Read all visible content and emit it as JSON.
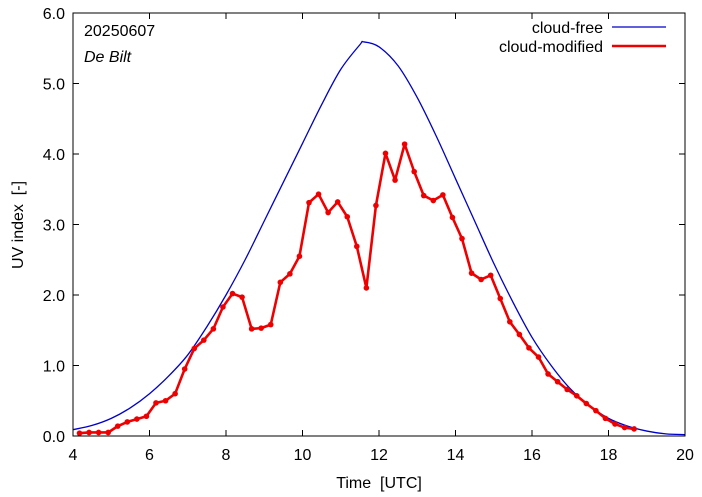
{
  "chart_data": {
    "type": "line",
    "date_label": "20250607",
    "location_label": "De Bilt",
    "xlabel": "Time  [UTC]",
    "ylabel": "UV index  [-]",
    "xlim": [
      4,
      20
    ],
    "ylim": [
      0,
      6
    ],
    "xticks": [
      4,
      6,
      8,
      10,
      12,
      14,
      16,
      18,
      20
    ],
    "xtick_labels": [
      "4",
      "6",
      "8",
      "10",
      "12",
      "14",
      "16",
      "18",
      "20"
    ],
    "yticks": [
      0,
      1,
      2,
      3,
      4,
      5,
      6
    ],
    "ytick_labels": [
      "0.0",
      "1.0",
      "2.0",
      "3.0",
      "4.0",
      "5.0",
      "6.0"
    ],
    "legend_position": "top-right",
    "grid": false,
    "series": [
      {
        "name": "cloud-free",
        "color": "#0000cc",
        "x": [
          4.0,
          4.5,
          5.0,
          5.5,
          6.0,
          6.5,
          7.0,
          7.5,
          8.0,
          8.5,
          9.0,
          9.5,
          10.0,
          10.5,
          11.0,
          11.5,
          11.6,
          12.0,
          12.5,
          13.0,
          13.5,
          14.0,
          14.5,
          15.0,
          15.5,
          16.0,
          16.5,
          17.0,
          17.5,
          18.0,
          18.5,
          19.0,
          19.5,
          20.0
        ],
        "y": [
          0.09,
          0.15,
          0.25,
          0.4,
          0.6,
          0.85,
          1.15,
          1.55,
          2.0,
          2.5,
          3.05,
          3.6,
          4.15,
          4.7,
          5.2,
          5.55,
          5.59,
          5.52,
          5.25,
          4.8,
          4.25,
          3.65,
          3.05,
          2.45,
          1.9,
          1.4,
          1.0,
          0.67,
          0.43,
          0.25,
          0.14,
          0.07,
          0.03,
          0.02
        ]
      },
      {
        "name": "cloud-modified",
        "color": "#ee0000",
        "x": [
          4.17,
          4.42,
          4.67,
          4.92,
          5.17,
          5.42,
          5.67,
          5.92,
          6.17,
          6.42,
          6.67,
          6.92,
          7.17,
          7.42,
          7.67,
          7.92,
          8.17,
          8.42,
          8.67,
          8.92,
          9.17,
          9.42,
          9.67,
          9.92,
          10.17,
          10.42,
          10.67,
          10.92,
          11.17,
          11.42,
          11.67,
          11.92,
          12.17,
          12.42,
          12.67,
          12.92,
          13.17,
          13.42,
          13.67,
          13.92,
          14.17,
          14.42,
          14.67,
          14.92,
          15.17,
          15.42,
          15.67,
          15.92,
          16.17,
          16.42,
          16.67,
          16.92,
          17.17,
          17.42,
          17.67,
          17.92,
          18.17,
          18.42,
          18.67
        ],
        "y": [
          0.04,
          0.05,
          0.05,
          0.05,
          0.14,
          0.2,
          0.24,
          0.28,
          0.47,
          0.5,
          0.6,
          0.95,
          1.24,
          1.36,
          1.52,
          1.83,
          2.02,
          1.97,
          1.52,
          1.53,
          1.58,
          2.18,
          2.3,
          2.55,
          3.31,
          3.43,
          3.17,
          3.32,
          3.11,
          2.69,
          2.1,
          3.27,
          4.01,
          3.63,
          4.14,
          3.75,
          3.41,
          3.34,
          3.42,
          3.1,
          2.8,
          2.31,
          2.22,
          2.28,
          1.95,
          1.62,
          1.44,
          1.25,
          1.12,
          0.88,
          0.77,
          0.66,
          0.57,
          0.46,
          0.36,
          0.25,
          0.17,
          0.12,
          0.1
        ]
      }
    ]
  }
}
